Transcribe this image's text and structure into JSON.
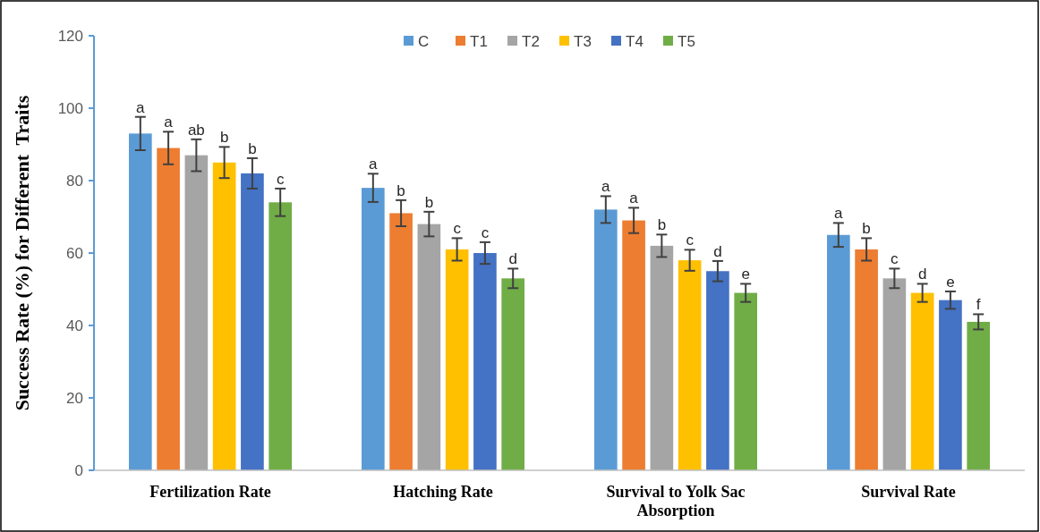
{
  "chart_data": {
    "type": "bar",
    "ylabel": "Success Rate (%) for Different  Traits",
    "categories": [
      "Fertilization Rate",
      "Hatching Rate",
      "Survival to Yolk Sac Absorption",
      "Survival Rate"
    ],
    "series": [
      {
        "name": "C",
        "color": "#5b9bd5",
        "values": [
          93,
          78,
          72,
          65
        ],
        "errors": [
          4.6,
          3.9,
          3.7,
          3.3
        ],
        "value_labels": [
          "a",
          "a",
          "a",
          "a"
        ]
      },
      {
        "name": "T1",
        "color": "#ed7d31",
        "values": [
          89,
          71,
          69,
          61
        ],
        "errors": [
          4.5,
          3.6,
          3.5,
          3.1
        ],
        "value_labels": [
          "a",
          "b",
          "a",
          "b"
        ]
      },
      {
        "name": "T2",
        "color": "#a5a5a5",
        "values": [
          87,
          68,
          62,
          53
        ],
        "errors": [
          4.4,
          3.4,
          3.1,
          2.7
        ],
        "value_labels": [
          "ab",
          "b",
          "b",
          "c"
        ]
      },
      {
        "name": "T3",
        "color": "#ffc000",
        "values": [
          85,
          61,
          58,
          49
        ],
        "errors": [
          4.3,
          3.1,
          2.9,
          2.5
        ],
        "value_labels": [
          "b",
          "c",
          "c",
          "d"
        ]
      },
      {
        "name": "T4",
        "color": "#4472c4",
        "values": [
          82,
          60,
          55,
          47
        ],
        "errors": [
          4.2,
          3.0,
          2.8,
          2.4
        ],
        "value_labels": [
          "b",
          "c",
          "d",
          "e"
        ]
      },
      {
        "name": "T5",
        "color": "#70ad47",
        "values": [
          74,
          53,
          49,
          41
        ],
        "errors": [
          3.8,
          2.7,
          2.5,
          2.1
        ],
        "value_labels": [
          "c",
          "d",
          "e",
          "f"
        ]
      }
    ],
    "ylim": [
      0,
      120
    ],
    "yticks": [
      0,
      20,
      40,
      60,
      80,
      100,
      120
    ],
    "grid": false,
    "legend": "top"
  }
}
